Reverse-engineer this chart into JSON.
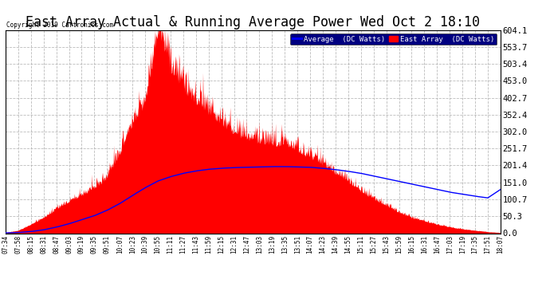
{
  "title": "East Array Actual & Running Average Power Wed Oct 2 18:10",
  "copyright": "Copyright 2019 Cartronics.com",
  "legend_labels": [
    "Average  (DC Watts)",
    "East Array  (DC Watts)"
  ],
  "legend_colors": [
    "#0000ff",
    "#ff0000"
  ],
  "legend_bg": "#000080",
  "legend_text_color": "#ffffff",
  "ylim": [
    0.0,
    604.1
  ],
  "yticks": [
    0.0,
    50.3,
    100.7,
    151.0,
    201.4,
    251.7,
    302.0,
    352.4,
    402.7,
    453.0,
    503.4,
    553.7,
    604.1
  ],
  "background_color": "#ffffff",
  "grid_color": "#aaaaaa",
  "title_fontsize": 12,
  "x_tick_labels": [
    "07:34",
    "07:58",
    "08:15",
    "08:31",
    "08:47",
    "09:03",
    "09:19",
    "09:35",
    "09:51",
    "10:07",
    "10:23",
    "10:39",
    "10:55",
    "11:11",
    "11:27",
    "11:43",
    "11:59",
    "12:15",
    "12:31",
    "12:47",
    "13:03",
    "13:19",
    "13:35",
    "13:51",
    "14:07",
    "14:23",
    "14:39",
    "14:55",
    "15:11",
    "15:27",
    "15:43",
    "15:59",
    "16:15",
    "16:31",
    "16:47",
    "17:03",
    "17:19",
    "17:35",
    "17:51",
    "18:07"
  ],
  "east_array_base": [
    2,
    8,
    25,
    45,
    70,
    90,
    110,
    130,
    160,
    230,
    320,
    380,
    590,
    480,
    420,
    380,
    350,
    320,
    290,
    275,
    265,
    260,
    255,
    240,
    220,
    200,
    175,
    150,
    120,
    100,
    80,
    60,
    45,
    35,
    25,
    18,
    12,
    8,
    4,
    2
  ],
  "average_base": [
    1,
    2,
    5,
    10,
    18,
    28,
    40,
    52,
    68,
    88,
    112,
    135,
    155,
    168,
    178,
    185,
    190,
    193,
    195,
    196,
    197,
    198,
    198,
    197,
    196,
    193,
    189,
    184,
    178,
    170,
    162,
    154,
    146,
    138,
    130,
    122,
    116,
    110,
    105,
    130
  ],
  "fill_color": "#ff0000",
  "line_color": "#0000ff",
  "noise_seed": 42,
  "noise_std": 40
}
